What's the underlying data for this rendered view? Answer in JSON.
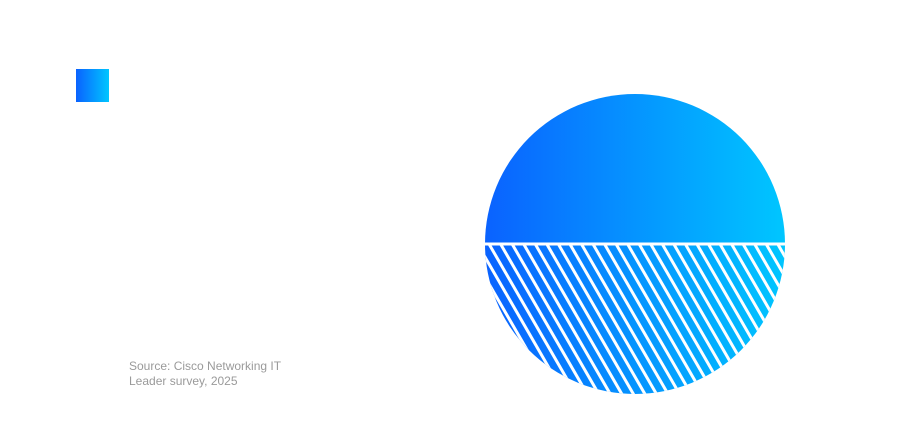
{
  "source": {
    "lines": [
      "Source: Cisco Networking IT",
      "Leader survey, 2025"
    ]
  }
}
